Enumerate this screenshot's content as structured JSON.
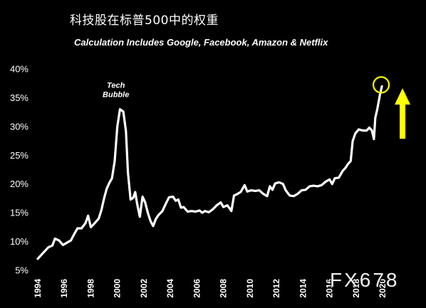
{
  "header": {
    "title_cn": "科技股在标普500中的权重",
    "subtitle": "Calculation Includes Google, Facebook, Amazon & Netflix"
  },
  "watermark": "FX678",
  "colors": {
    "background": "#000000",
    "line": "#ffffff",
    "highlight": "#ffff00"
  },
  "chart_data": {
    "type": "line",
    "title": "科技股在标普500中的权重",
    "subtitle": "Calculation Includes Google, Facebook, Amazon & Netflix",
    "xlabel": "",
    "ylabel": "",
    "xlim": [
      1994,
      2020
    ],
    "ylim": [
      5,
      40
    ],
    "grid": false,
    "legend": "none",
    "y_ticks": [
      5,
      10,
      15,
      20,
      25,
      30,
      35,
      40
    ],
    "y_tick_labels": [
      "5%",
      "10%",
      "15%",
      "20%",
      "25%",
      "30%",
      "35%",
      "40%"
    ],
    "x_ticks": [
      1994,
      1996,
      1998,
      2000,
      2002,
      2004,
      2006,
      2008,
      2010,
      2012,
      2014,
      2016,
      2018,
      2020
    ],
    "x_tick_labels": [
      "1994",
      "1996",
      "1998",
      "2000",
      "2002",
      "2004",
      "2006",
      "2008",
      "2010",
      "2012",
      "2014",
      "2016",
      "2018",
      "2020"
    ],
    "series": [
      {
        "points": [
          [
            1994.0,
            7.0
          ],
          [
            1994.4,
            8.0
          ],
          [
            1994.8,
            9.0
          ],
          [
            1995.1,
            9.3
          ],
          [
            1995.3,
            10.5
          ],
          [
            1995.6,
            10.2
          ],
          [
            1995.9,
            9.4
          ],
          [
            1996.2,
            9.8
          ],
          [
            1996.5,
            10.2
          ],
          [
            1996.8,
            11.5
          ],
          [
            1997.0,
            12.3
          ],
          [
            1997.3,
            12.3
          ],
          [
            1997.6,
            13.2
          ],
          [
            1997.8,
            14.5
          ],
          [
            1998.0,
            12.5
          ],
          [
            1998.3,
            13.2
          ],
          [
            1998.6,
            14.0
          ],
          [
            1998.8,
            15.5
          ],
          [
            1999.0,
            17.5
          ],
          [
            1999.2,
            19.2
          ],
          [
            1999.4,
            20.2
          ],
          [
            1999.6,
            21.0
          ],
          [
            1999.8,
            24.0
          ],
          [
            2000.0,
            30.0
          ],
          [
            2000.2,
            33.0
          ],
          [
            2000.45,
            32.6
          ],
          [
            2000.65,
            29.2
          ],
          [
            2000.8,
            22.0
          ],
          [
            2001.0,
            17.3
          ],
          [
            2001.2,
            17.6
          ],
          [
            2001.35,
            18.6
          ],
          [
            2001.5,
            16.5
          ],
          [
            2001.7,
            14.3
          ],
          [
            2001.9,
            17.8
          ],
          [
            2002.1,
            16.8
          ],
          [
            2002.3,
            15.0
          ],
          [
            2002.5,
            13.6
          ],
          [
            2002.7,
            12.7
          ],
          [
            2002.9,
            13.9
          ],
          [
            2003.1,
            14.6
          ],
          [
            2003.4,
            15.3
          ],
          [
            2003.7,
            16.8
          ],
          [
            2003.9,
            17.7
          ],
          [
            2004.2,
            17.8
          ],
          [
            2004.4,
            17.1
          ],
          [
            2004.6,
            17.3
          ],
          [
            2004.8,
            15.9
          ],
          [
            2005.0,
            16.0
          ],
          [
            2005.3,
            15.2
          ],
          [
            2005.6,
            15.3
          ],
          [
            2005.9,
            15.2
          ],
          [
            2006.2,
            15.4
          ],
          [
            2006.4,
            15.0
          ],
          [
            2006.6,
            15.3
          ],
          [
            2006.9,
            15.1
          ],
          [
            2007.2,
            15.6
          ],
          [
            2007.5,
            16.3
          ],
          [
            2007.8,
            16.8
          ],
          [
            2008.0,
            16.0
          ],
          [
            2008.3,
            16.3
          ],
          [
            2008.6,
            15.3
          ],
          [
            2008.8,
            18.0
          ],
          [
            2009.0,
            18.2
          ],
          [
            2009.3,
            18.6
          ],
          [
            2009.6,
            19.8
          ],
          [
            2009.8,
            18.7
          ],
          [
            2010.1,
            18.9
          ],
          [
            2010.4,
            18.8
          ],
          [
            2010.7,
            18.9
          ],
          [
            2011.0,
            18.3
          ],
          [
            2011.3,
            17.9
          ],
          [
            2011.5,
            19.6
          ],
          [
            2011.7,
            19.0
          ],
          [
            2011.9,
            20.1
          ],
          [
            2012.2,
            20.3
          ],
          [
            2012.5,
            20.0
          ],
          [
            2012.7,
            18.9
          ],
          [
            2013.0,
            18.0
          ],
          [
            2013.3,
            17.9
          ],
          [
            2013.6,
            18.3
          ],
          [
            2013.9,
            18.9
          ],
          [
            2014.2,
            19.0
          ],
          [
            2014.5,
            19.6
          ],
          [
            2014.8,
            19.7
          ],
          [
            2015.1,
            19.6
          ],
          [
            2015.4,
            19.8
          ],
          [
            2015.7,
            20.4
          ],
          [
            2016.0,
            20.8
          ],
          [
            2016.2,
            20.0
          ],
          [
            2016.4,
            21.0
          ],
          [
            2016.7,
            21.1
          ],
          [
            2017.0,
            22.3
          ],
          [
            2017.2,
            22.8
          ],
          [
            2017.4,
            23.5
          ],
          [
            2017.6,
            24.0
          ],
          [
            2017.75,
            27.5
          ],
          [
            2017.95,
            28.8
          ],
          [
            2018.2,
            29.5
          ],
          [
            2018.5,
            29.3
          ],
          [
            2018.8,
            29.3
          ],
          [
            2019.0,
            29.8
          ],
          [
            2019.2,
            29.3
          ],
          [
            2019.35,
            27.8
          ],
          [
            2019.45,
            31.5
          ],
          [
            2019.6,
            33.0
          ],
          [
            2019.8,
            35.5
          ],
          [
            2019.95,
            37.0
          ]
        ]
      }
    ],
    "annotations": [
      {
        "text": "Tech\nBubble",
        "x": 2000.0,
        "y": 33.0
      }
    ],
    "highlight_point": [
      2019.95,
      37.0
    ]
  }
}
